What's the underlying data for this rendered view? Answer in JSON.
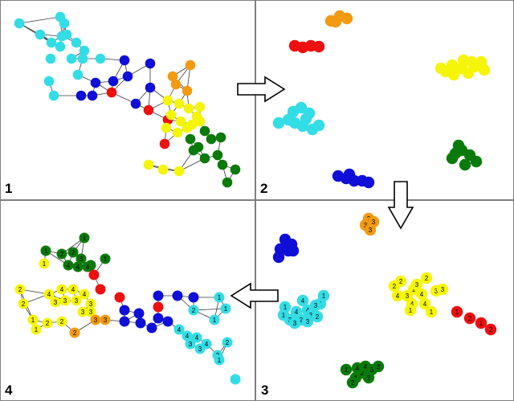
{
  "panels": [
    {
      "label": "1"
    },
    {
      "label": "2"
    },
    {
      "label": "3"
    },
    {
      "label": "4"
    }
  ],
  "colors": {
    "cyan": "#33dde6",
    "blue": "#0f0fd8",
    "red": "#ee0f0f",
    "orange": "#f29a12",
    "yellow": "#f5f50a",
    "green": "#0a7a0a",
    "edge": "#3a3a3a",
    "arrow_stroke": "#000000",
    "arrow_fill": "#ffffff"
  },
  "icons": [
    "right-arrow-icon",
    "down-arrow-icon",
    "left-arrow-icon"
  ],
  "panel3_node_labels": {
    "orange": [
      "2",
      "3",
      "3",
      "3"
    ],
    "cyan": [
      "1",
      "1",
      "1",
      "1",
      "4",
      "4",
      "4",
      "3",
      "3",
      "2",
      "3",
      "3",
      "3",
      "2"
    ],
    "yellow": [
      "2",
      "2",
      "2",
      "1",
      "4",
      "3",
      "3",
      "4",
      "4",
      "4",
      "3",
      "3",
      "1",
      "1"
    ],
    "red": [
      "1",
      "2",
      "1",
      "2"
    ],
    "green": [
      "1",
      "1",
      "2",
      "2",
      "4",
      "4",
      "3",
      "3",
      "2"
    ]
  },
  "panel4_node_labels": {
    "green": [
      "1",
      "1",
      "2",
      "2",
      "3",
      "3",
      "4",
      "4",
      "4",
      "1"
    ],
    "yellow": [
      "1",
      "2",
      "2",
      "4",
      "4",
      "4",
      "3",
      "3",
      "3",
      "4",
      "3",
      "3",
      "3",
      "2",
      "2",
      "1",
      "1"
    ],
    "orange": [
      "2",
      "3",
      "3"
    ],
    "cyan": [
      "1",
      "1",
      "1",
      "2",
      "4",
      "4",
      "4",
      "4",
      "3",
      "3",
      "2",
      "2",
      "1"
    ]
  }
}
